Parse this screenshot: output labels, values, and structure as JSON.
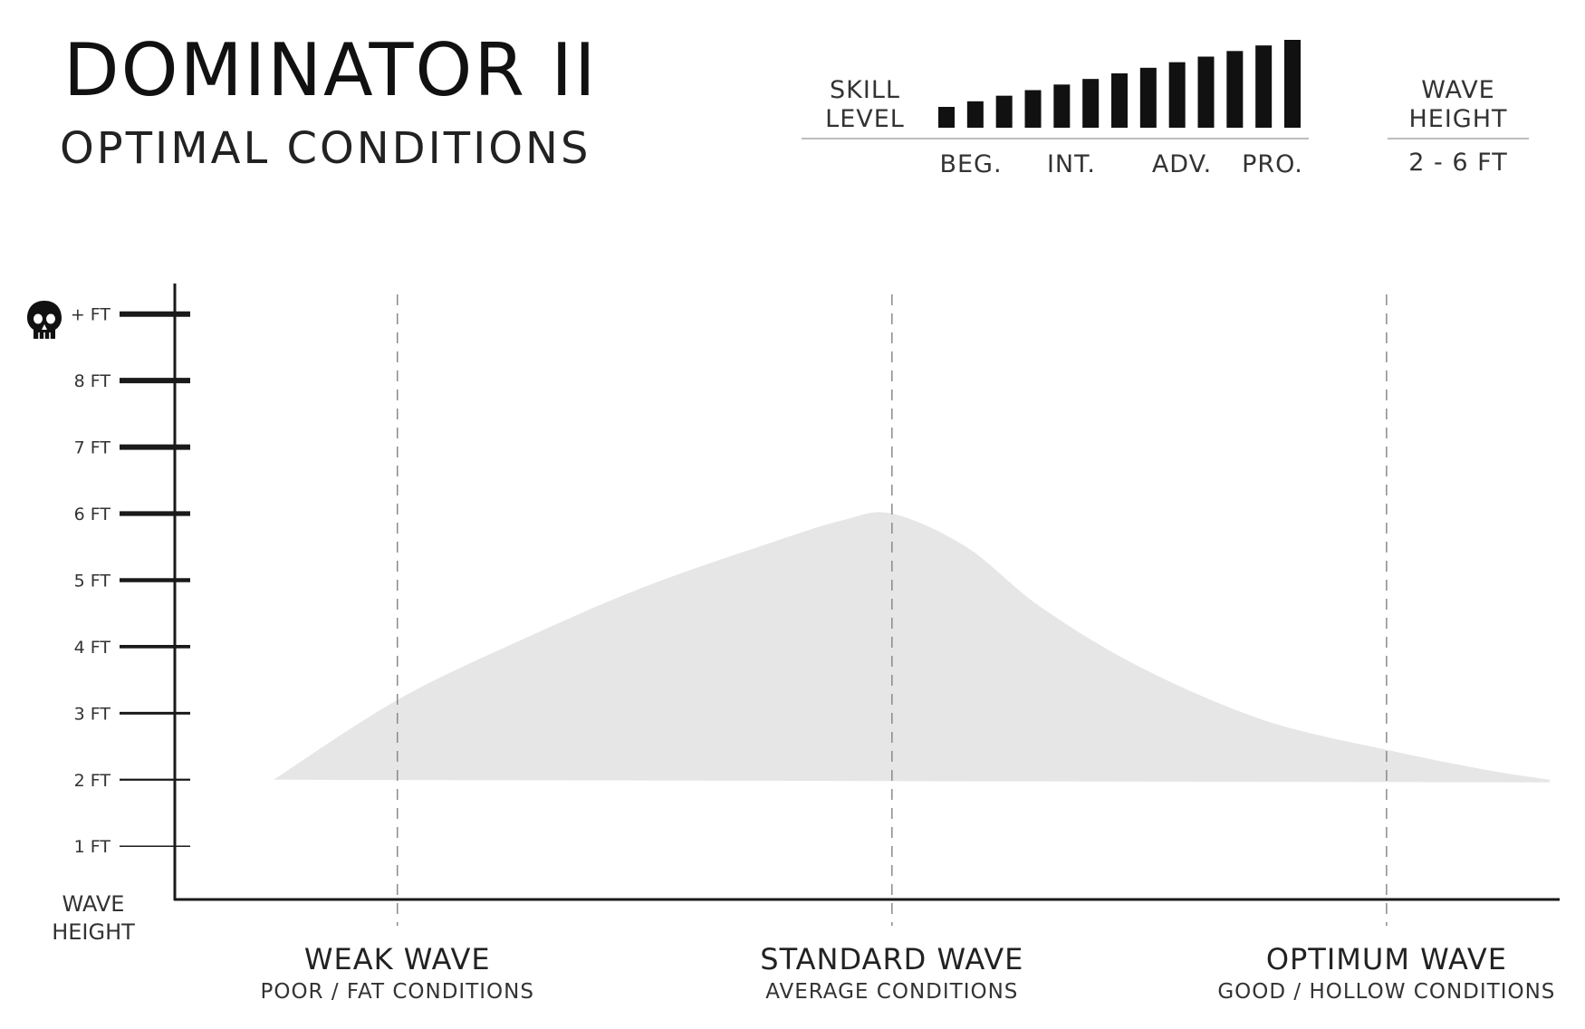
{
  "chart_data": {
    "type": "area",
    "title": "DOMINATOR II",
    "subtitle": "OPTIMAL CONDITIONS",
    "ylabel_line1": "WAVE",
    "ylabel_line2": "HEIGHT",
    "yticks": [
      {
        "value": 1,
        "label": "1 FT"
      },
      {
        "value": 2,
        "label": "2 FT"
      },
      {
        "value": 3,
        "label": "3 FT"
      },
      {
        "value": 4,
        "label": "4 FT"
      },
      {
        "value": 5,
        "label": "5 FT"
      },
      {
        "value": 6,
        "label": "6 FT"
      },
      {
        "value": 7,
        "label": "7 FT"
      },
      {
        "value": 8,
        "label": "8 FT"
      },
      {
        "value": 9,
        "label": "+ FT"
      }
    ],
    "ylim": [
      0.2,
      9.5
    ],
    "xlim": [
      -0.45,
      2.35
    ],
    "categories": [
      {
        "position": 0,
        "name": "WEAK WAVE",
        "detail": "POOR / FAT CONDITIONS"
      },
      {
        "position": 1,
        "name": "STANDARD WAVE",
        "detail": "AVERAGE CONDITIONS"
      },
      {
        "position": 2,
        "name": "OPTIMUM WAVE",
        "detail": "GOOD / HOLLOW CONDITIONS"
      }
    ],
    "area": {
      "baseline": 2,
      "x": [
        -0.25,
        0.0,
        0.25,
        0.5,
        0.75,
        0.9,
        1.0,
        1.15,
        1.3,
        1.5,
        1.75,
        2.0,
        2.2,
        2.33
      ],
      "y": [
        2.0,
        3.2,
        4.1,
        4.9,
        5.55,
        5.9,
        6.0,
        5.5,
        4.6,
        3.7,
        2.9,
        2.45,
        2.15,
        2.0
      ],
      "color": "#e6e6e6"
    },
    "skill_level": {
      "label_line1": "SKILL",
      "label_line2": "LEVEL",
      "ticks": [
        "BEG.",
        "INT.",
        "ADV.",
        "PRO."
      ],
      "bars": [
        1,
        2,
        3,
        4,
        5,
        6,
        7,
        8,
        9,
        10,
        11,
        12,
        13
      ],
      "bar_color": "#111111"
    },
    "wave_height_range": {
      "label_line1": "WAVE",
      "label_line2": "HEIGHT",
      "value": "2 - 6 FT"
    }
  }
}
